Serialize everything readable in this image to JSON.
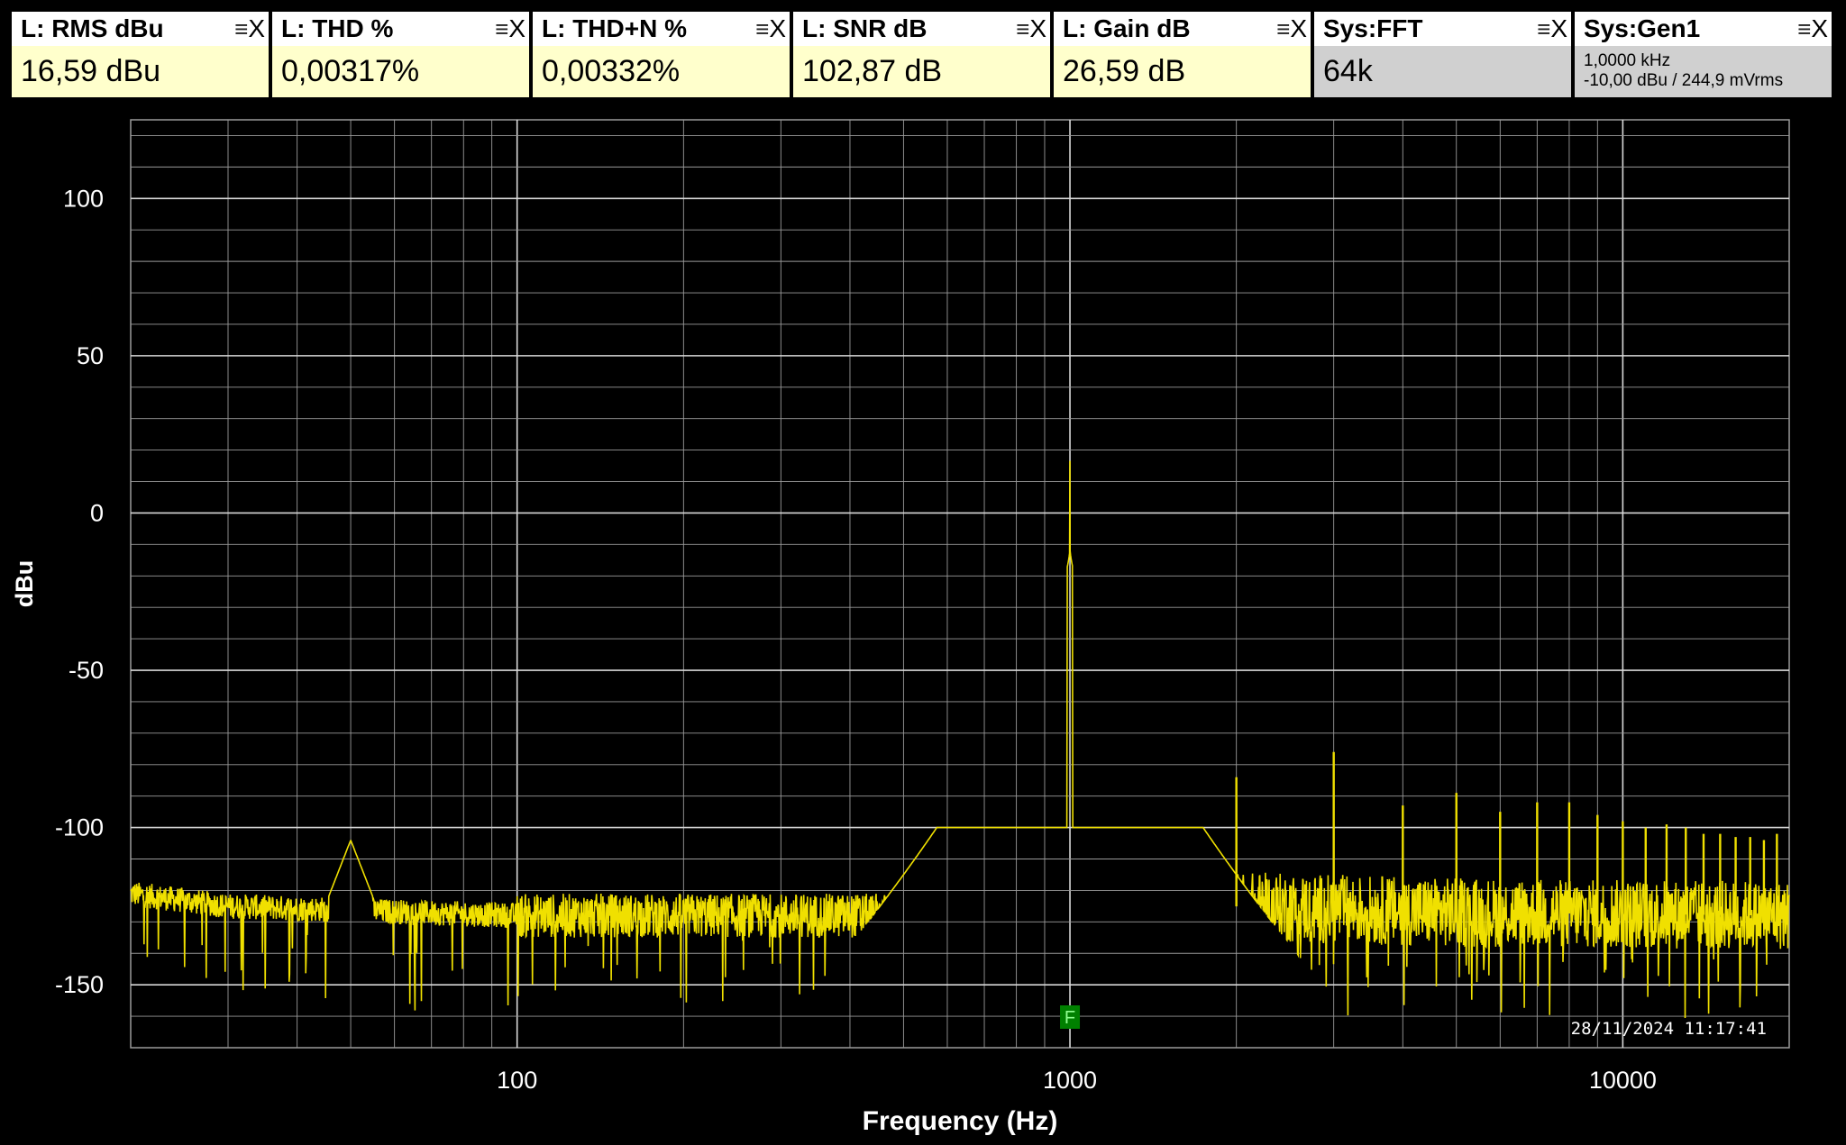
{
  "meters": [
    {
      "title": "L: RMS dBu",
      "value": "16,59 dBu",
      "kind": "meter"
    },
    {
      "title": "L: THD %",
      "value": "0,00317%",
      "kind": "meter"
    },
    {
      "title": "L: THD+N %",
      "value": "0,00332%",
      "kind": "meter"
    },
    {
      "title": "L: SNR dB",
      "value": "102,87 dB",
      "kind": "meter"
    },
    {
      "title": "L: Gain dB",
      "value": "26,59 dB",
      "kind": "meter"
    },
    {
      "title": "Sys:FFT",
      "value": "64k",
      "kind": "sys"
    },
    {
      "title": "Sys:Gen1",
      "line1": "1,0000 kHz",
      "line2": "-10,00 dBu  / 244,9 mVrms",
      "kind": "sys"
    }
  ],
  "meter_icons": {
    "menu": "≡",
    "close": "X"
  },
  "plot": {
    "marker_label": "F",
    "timestamp": "28/11/2024 11:17:41",
    "colors": {
      "trace": "#f0e000",
      "grid": "#9a9a9a",
      "marker": "#008000",
      "background": "#000000"
    }
  },
  "chart_data": {
    "type": "line",
    "xlabel": "Frequency (Hz)",
    "ylabel": "dBu",
    "x_scale": "log",
    "xlim": [
      20,
      20000
    ],
    "ylim": [
      -170,
      125
    ],
    "x_ticks": [
      {
        "value": 100,
        "label": "100"
      },
      {
        "value": 1000,
        "label": "1000"
      },
      {
        "value": 10000,
        "label": "10000"
      }
    ],
    "y_ticks": [
      {
        "value": 100,
        "label": "100"
      },
      {
        "value": 50,
        "label": "50"
      },
      {
        "value": 0,
        "label": "0"
      },
      {
        "value": -50,
        "label": "-50"
      },
      {
        "value": -100,
        "label": "-100"
      },
      {
        "value": -150,
        "label": "-150"
      }
    ],
    "grid": true,
    "fundamental": {
      "freq": 1000,
      "level": 16.59
    },
    "harmonics": [
      {
        "freq": 2000,
        "level": -84
      },
      {
        "freq": 3000,
        "level": -76
      },
      {
        "freq": 4000,
        "level": -93
      },
      {
        "freq": 5000,
        "level": -89
      },
      {
        "freq": 6000,
        "level": -95
      },
      {
        "freq": 7000,
        "level": -92
      },
      {
        "freq": 8000,
        "level": -92
      },
      {
        "freq": 9000,
        "level": -96
      },
      {
        "freq": 10000,
        "level": -98
      },
      {
        "freq": 11000,
        "level": -100
      },
      {
        "freq": 12000,
        "level": -99
      },
      {
        "freq": 13000,
        "level": -100
      },
      {
        "freq": 14000,
        "level": -102
      },
      {
        "freq": 15000,
        "level": -102
      },
      {
        "freq": 16000,
        "level": -103
      },
      {
        "freq": 17000,
        "level": -103
      },
      {
        "freq": 18000,
        "level": -104
      },
      {
        "freq": 19000,
        "level": -102
      }
    ],
    "mains_hum": {
      "freq": 50,
      "level": -104
    },
    "noise_floor": [
      {
        "freq": 20,
        "level": -121
      },
      {
        "freq": 30,
        "level": -125
      },
      {
        "freq": 100,
        "level": -128
      },
      {
        "freq": 500,
        "level": -128
      },
      {
        "freq": 800,
        "level": -126
      },
      {
        "freq": 1200,
        "level": -124
      },
      {
        "freq": 5000,
        "level": -127
      },
      {
        "freq": 20000,
        "level": -128
      }
    ]
  }
}
